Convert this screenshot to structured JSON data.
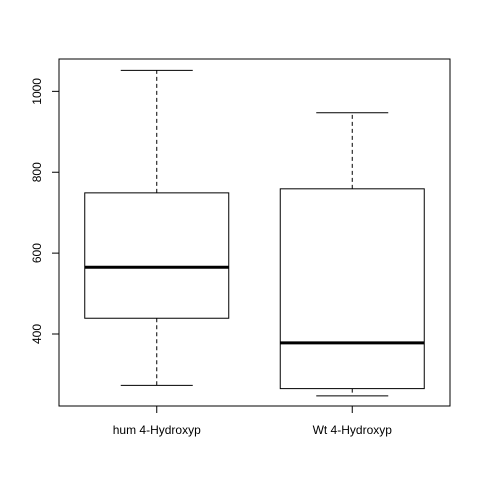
{
  "chart_data": {
    "type": "boxplot",
    "title": "",
    "xlabel": "",
    "ylabel": "",
    "categories": [
      "hum 4-Hydroxyp",
      "Wt 4-Hydroxyp"
    ],
    "boxes": [
      {
        "name": "hum 4-Hydroxyp",
        "whisker_low": 273,
        "q1": 439,
        "median": 565,
        "q3": 749,
        "whisker_high": 1052
      },
      {
        "name": "Wt 4-Hydroxyp",
        "whisker_low": 247,
        "q1": 265,
        "median": 378,
        "q3": 759,
        "whisker_high": 947
      }
    ],
    "yticks": [
      400,
      600,
      800,
      1000
    ],
    "ylim": [
      222,
      1080
    ],
    "grid": false,
    "legend": "none"
  }
}
